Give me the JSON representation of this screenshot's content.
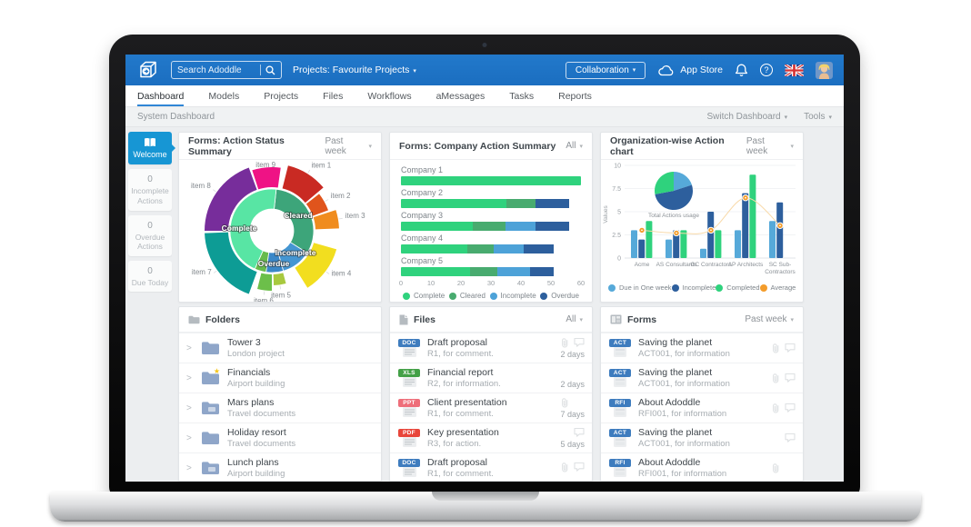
{
  "icons": {
    "caret": "▾",
    "chevron_right": ">",
    "star": "★",
    "help": "?"
  },
  "topbar": {
    "search_placeholder": "Search Adoddle",
    "projects_label": "Projects: Favourite Projects",
    "collaboration_label": "Collaboration",
    "app_store_label": "App Store"
  },
  "nav": {
    "items": [
      {
        "label": "Dashboard",
        "active": true
      },
      {
        "label": "Models"
      },
      {
        "label": "Projects"
      },
      {
        "label": "Files"
      },
      {
        "label": "Workflows"
      },
      {
        "label": "aMessages"
      },
      {
        "label": "Tasks"
      },
      {
        "label": "Reports"
      }
    ]
  },
  "subbar": {
    "title": "System Dashboard",
    "switch_label": "Switch Dashboard",
    "tools_label": "Tools"
  },
  "sidebar": {
    "items": [
      {
        "count": "",
        "label": "Welcome",
        "active": true
      },
      {
        "count": "0",
        "label": "Incomplete Actions"
      },
      {
        "count": "0",
        "label": "Overdue Actions"
      },
      {
        "count": "0",
        "label": "Due Today"
      }
    ]
  },
  "panels": {
    "action_status": {
      "title": "Forms: Action Status Summary",
      "filter": "Past week"
    },
    "company_summary": {
      "title": "Forms: Company Action Summary",
      "filter": "All"
    },
    "org_chart": {
      "title": "Organization-wise Action chart",
      "filter": "Past week"
    },
    "folders": {
      "title": "Folders"
    },
    "files": {
      "title": "Files",
      "filter": "All"
    },
    "forms": {
      "title": "Forms",
      "filter": "Past week"
    }
  },
  "chart_data": [
    {
      "type": "pie",
      "variant": "sunburst",
      "title": "Forms: Action Status Summary",
      "inner_ring": [
        {
          "label": "Cleared",
          "start": 6,
          "end": 122,
          "color": "#3da57a",
          "lx": 131,
          "ly": 64
        },
        {
          "label": "Incomplete",
          "start": 122,
          "end": 164,
          "color": "#4596d2",
          "lx": 128,
          "ly": 105
        },
        {
          "label": "Overdue",
          "start": 164,
          "end": 188,
          "color": "#3a87c8",
          "lx": 104,
          "ly": 117
        },
        {
          "label": "",
          "start": 188,
          "end": 204,
          "color": "#66bb4b"
        },
        {
          "label": "Complete",
          "start": 204,
          "end": 366,
          "color": "#58e5a4",
          "lx": 66,
          "ly": 78
        }
      ],
      "outer_ring": [
        {
          "label": "item 1",
          "start": 14,
          "end": 50,
          "r": 74,
          "color": "#c92a23"
        },
        {
          "label": "item 2",
          "start": 52,
          "end": 70,
          "r": 66,
          "color": "#e0541c"
        },
        {
          "label": "item 3",
          "start": 72,
          "end": 88,
          "r": 74,
          "color": "#f08c1e"
        },
        {
          "label": "item 4",
          "start": 106,
          "end": 148,
          "r": 74,
          "color": "#f2de1f"
        },
        {
          "label": "item 5",
          "start": 165,
          "end": 178,
          "r": 60,
          "color": "#a8c93f"
        },
        {
          "label": "item 6",
          "start": 180,
          "end": 194,
          "r": 66,
          "color": "#6cbf4a"
        },
        {
          "label": "item 7",
          "start": 200,
          "end": 268,
          "r": 74,
          "color": "#0d9c95"
        },
        {
          "label": "item 8",
          "start": 270,
          "end": 340,
          "r": 74,
          "color": "#772d9b"
        },
        {
          "label": "item 9",
          "start": 342,
          "end": 368,
          "r": 70,
          "color": "#ef1385"
        }
      ]
    },
    {
      "type": "bar",
      "orientation": "horizontal",
      "stacked": true,
      "title": "Forms: Company Action Summary",
      "categories": [
        "Company 1",
        "Company 2",
        "Company 3",
        "Company 4",
        "Company 5"
      ],
      "series": [
        {
          "name": "Complete",
          "color": "#2fd27d",
          "values": [
            60,
            35,
            24,
            22,
            23
          ]
        },
        {
          "name": "Cleared",
          "color": "#48ab6f",
          "values": [
            0,
            10,
            11,
            9,
            9
          ]
        },
        {
          "name": "Incomplete",
          "color": "#4da2d8",
          "values": [
            0,
            0,
            10,
            10,
            11
          ]
        },
        {
          "name": "Overdue",
          "color": "#2d5f9d",
          "values": [
            0,
            11,
            11,
            10,
            8
          ]
        }
      ],
      "xlim": [
        0,
        60
      ],
      "xticks": [
        0,
        10,
        20,
        30,
        40,
        50,
        60
      ],
      "legend_position": "bottom"
    },
    {
      "type": "bar",
      "grouped": true,
      "title": "Organization-wise Action chart",
      "ylabel": "Values",
      "ylim": [
        0,
        10
      ],
      "yticks": [
        0,
        2.5,
        5,
        7.5,
        10
      ],
      "grid": true,
      "categories": [
        "Acme",
        "AS Consultants",
        "GC Contractors",
        "AP Architects",
        "SC Sub-Contractors"
      ],
      "series": [
        {
          "name": "Due in One week",
          "color": "#56a9d9",
          "values": [
            3,
            2,
            1,
            3,
            4
          ]
        },
        {
          "name": "Incomplete",
          "color": "#2d5f9d",
          "values": [
            2,
            3,
            5,
            7,
            6
          ]
        },
        {
          "name": "Completed",
          "color": "#2fd27d",
          "values": [
            4,
            3,
            3,
            9,
            0
          ]
        },
        {
          "name": "Average",
          "type": "line",
          "color": "#f39c2b",
          "values": [
            3,
            2.7,
            3,
            6.5,
            3.5
          ]
        }
      ],
      "inset_pie": {
        "label": "Total Actions usage",
        "slices": [
          {
            "name": "Due in One week",
            "value": 20,
            "color": "#56a9d9"
          },
          {
            "name": "Incomplete",
            "value": 52,
            "color": "#2d5f9d"
          },
          {
            "name": "Completed",
            "value": 28,
            "color": "#2fd27d"
          }
        ]
      },
      "legend_position": "bottom"
    }
  ],
  "folders": {
    "items": [
      {
        "title": "Tower 3",
        "subtitle": "London project",
        "starred": false,
        "shared": false
      },
      {
        "title": "Financials",
        "subtitle": "Airport building",
        "starred": true,
        "shared": false
      },
      {
        "title": "Mars plans",
        "subtitle": "Travel documents",
        "starred": false,
        "shared": true
      },
      {
        "title": "Holiday resort",
        "subtitle": "Travel documents",
        "starred": false,
        "shared": false
      },
      {
        "title": "Lunch plans",
        "subtitle": "Airport building",
        "starred": false,
        "shared": true
      }
    ]
  },
  "files": {
    "items": [
      {
        "badge": "DOC",
        "badge_color": "#3e7cbe",
        "title": "Draft proposal",
        "subtitle": "R1, for comment.",
        "age": "2 days",
        "attach": true,
        "comment": true
      },
      {
        "badge": "XLS",
        "badge_color": "#43a047",
        "title": "Financial report",
        "subtitle": "R2, for information.",
        "age": "2 days",
        "attach": false,
        "comment": false
      },
      {
        "badge": "PPT",
        "badge_color": "#ee6e7a",
        "title": "Client presentation",
        "subtitle": "R1, for comment.",
        "age": "7 days",
        "attach": true,
        "comment": false
      },
      {
        "badge": "PDF",
        "badge_color": "#e8463b",
        "title": "Key presentation",
        "subtitle": "R3, for action.",
        "age": "5 days",
        "attach": false,
        "comment": true
      },
      {
        "badge": "DOC",
        "badge_color": "#3e7cbe",
        "title": "Draft proposal",
        "subtitle": "R1, for comment.",
        "age": "",
        "attach": true,
        "comment": true
      }
    ]
  },
  "forms": {
    "items": [
      {
        "badge": "ACT",
        "badge_color": "#3e7cbe",
        "title": "Saving the planet",
        "subtitle": "ACT001, for information",
        "attach": true,
        "comment": true
      },
      {
        "badge": "ACT",
        "badge_color": "#3e7cbe",
        "title": "Saving the planet",
        "subtitle": "ACT001, for information",
        "attach": true,
        "comment": true
      },
      {
        "badge": "RFI",
        "badge_color": "#3e7cbe",
        "title": "About Adoddle",
        "subtitle": "RFI001, for information",
        "attach": true,
        "comment": true
      },
      {
        "badge": "ACT",
        "badge_color": "#3e7cbe",
        "title": "Saving the planet",
        "subtitle": "ACT001, for information",
        "attach": false,
        "comment": true
      },
      {
        "badge": "RFI",
        "badge_color": "#3e7cbe",
        "title": "About Adoddle",
        "subtitle": "RFI001, for information",
        "attach": true,
        "comment": false
      }
    ]
  }
}
